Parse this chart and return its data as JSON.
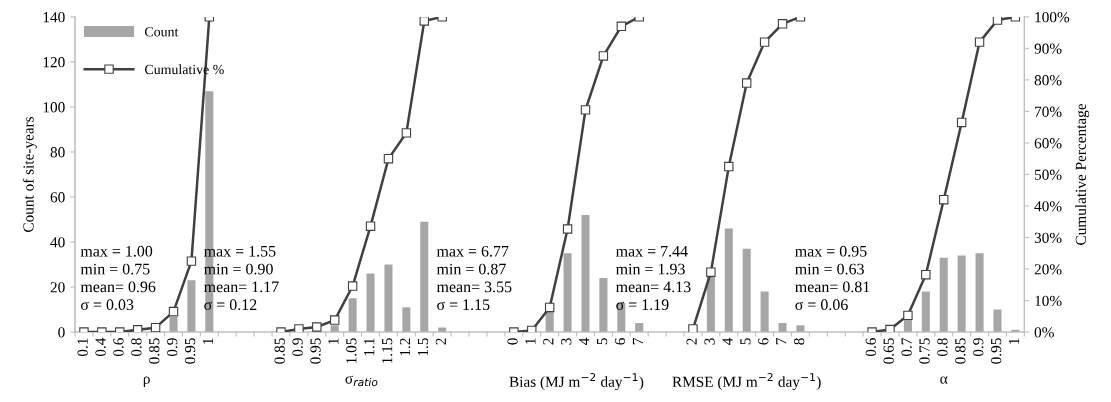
{
  "chart_data": {
    "type": "bar",
    "categories": [
      "0.1",
      "0.4",
      "0.6",
      "0.8",
      "0.85",
      "0.9",
      "0.95",
      "1",
      null,
      null,
      null,
      "0.85",
      "0.9",
      "0.95",
      "1",
      "1.05",
      "1.1",
      "1.15",
      "1.2",
      "1.5",
      "2",
      null,
      null,
      null,
      "0",
      "1",
      "2",
      "3",
      "4",
      "5",
      "6",
      "7",
      null,
      null,
      "2",
      "3",
      "4",
      "5",
      "6",
      "7",
      "8",
      null,
      null,
      null,
      "0.6",
      "0.65",
      "0.7",
      "0.75",
      "0.8",
      "0.85",
      "0.9",
      "0.95",
      "1"
    ],
    "series": [
      {
        "name": "Count",
        "color": "#a6a6a6",
        "values": [
          0,
          0,
          0,
          null,
          null,
          7,
          23,
          107,
          null,
          null,
          null,
          0,
          null,
          null,
          3,
          15,
          26,
          30,
          11,
          49,
          2,
          null,
          null,
          null,
          0,
          0,
          9,
          35,
          52,
          24,
          13,
          4,
          null,
          null,
          null,
          26,
          46,
          37,
          18,
          4,
          3,
          null,
          null,
          null,
          0,
          null,
          6,
          18,
          33,
          34,
          35,
          10,
          1
        ]
      },
      {
        "name": "Cumulative %",
        "type": "line",
        "axis": "y2",
        "color": "#404040",
        "values": [
          0,
          0,
          0,
          0.7,
          1.4,
          6.5,
          22.5,
          100,
          null,
          null,
          null,
          0,
          1,
          1.6,
          3.8,
          14.6,
          33.6,
          55,
          63.2,
          98.7,
          100,
          null,
          null,
          null,
          0,
          0.5,
          7.8,
          32.7,
          70.5,
          87.6,
          97,
          100,
          null,
          null,
          1,
          19,
          52.5,
          79,
          92,
          97.8,
          100,
          null,
          null,
          null,
          0,
          0.8,
          5.3,
          18.2,
          42,
          66.5,
          92,
          99,
          100
        ]
      }
    ],
    "ylabel": "Count of site-years",
    "y2label": "Cumulative Percentage",
    "ylim": [
      0,
      140
    ],
    "yticks": [
      0,
      20,
      40,
      60,
      80,
      100,
      120,
      140
    ],
    "y2lim": [
      0,
      100
    ],
    "y2ticks": [
      {
        "value": 0,
        "label": "0%"
      },
      {
        "value": 10,
        "label": "10%"
      },
      {
        "value": 20,
        "label": "20%"
      },
      {
        "value": 30,
        "label": "30%"
      },
      {
        "value": 40,
        "label": "40%"
      },
      {
        "value": 50,
        "label": "50%"
      },
      {
        "value": 60,
        "label": "60%"
      },
      {
        "value": 70,
        "label": "70%"
      },
      {
        "value": 80,
        "label": "80%"
      },
      {
        "value": 90,
        "label": "90%"
      },
      {
        "value": 100,
        "label": "100%"
      }
    ],
    "marker": "square",
    "legend": "top left",
    "grid": false,
    "annotations": [
      "ρ",
      "σ$_{ratio}$",
      "Bias (MJ m$^{−2}$ day$^{−1}$)",
      "RMSE (MJ m$^{−2}$ day$^{−1}$)",
      "α",
      "max = 1.00\nmin = 0.75\nmean= 0.96\nσ = 0.03",
      "max = 1.55\nmin = 0.90\nmean= 1.17\nσ = 0.12",
      "max = 6.77\nmin = 0.87\nmean= 3.55\nσ = 1.15",
      "max = 7.44\nmin = 1.93\nmean= 4.13\nσ = 1.19",
      "max = 0.95\nmin = 0.63\nmean= 0.81\nσ = 0.06"
    ]
  }
}
